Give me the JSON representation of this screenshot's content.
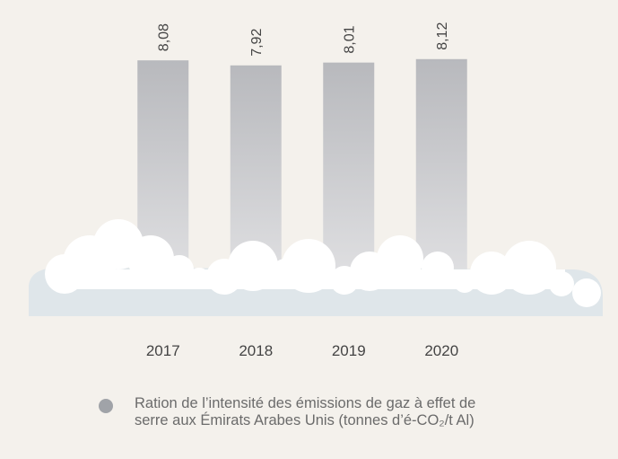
{
  "chart_data": {
    "type": "bar",
    "categories": [
      "2017",
      "2018",
      "2019",
      "2020"
    ],
    "series": [
      {
        "name": "Ration de l’intensité des émissions de gaz à effet de serre aux Émirats Arabes Unis (tonnes d’é-CO₂/t Al)",
        "color": "#b8b9bd",
        "values": [
          8.08,
          7.92,
          8.01,
          8.12
        ],
        "value_labels": [
          "8,08",
          "7,92",
          "8,01",
          "8,12"
        ]
      }
    ],
    "ylim": [
      0,
      9
    ]
  }
}
